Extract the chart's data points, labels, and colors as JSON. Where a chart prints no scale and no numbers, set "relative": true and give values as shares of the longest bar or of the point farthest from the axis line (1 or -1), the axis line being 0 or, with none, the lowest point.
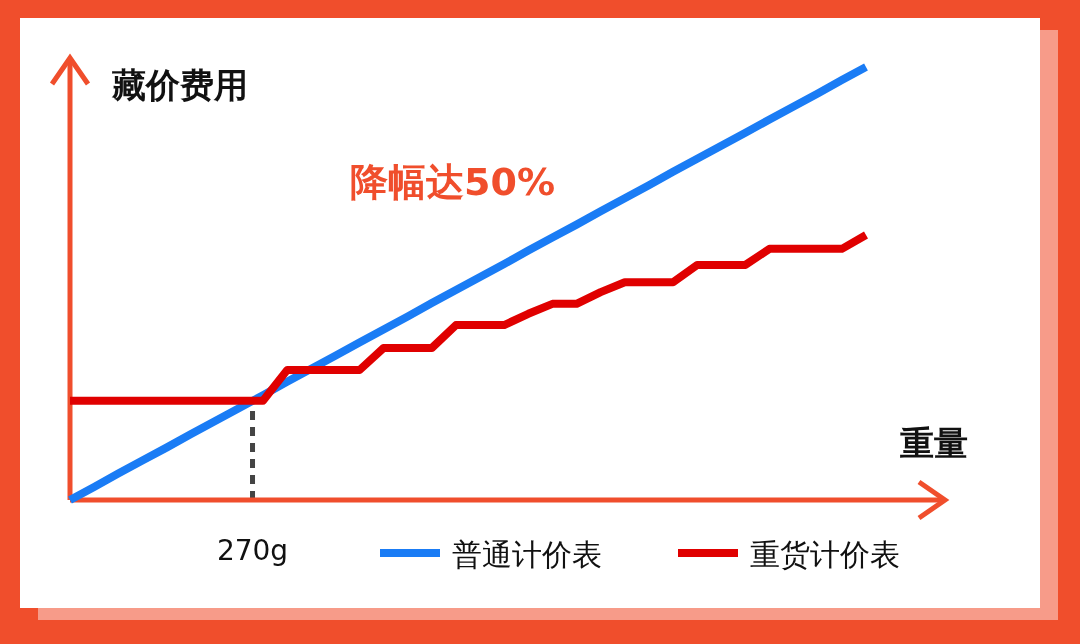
{
  "chart_data": {
    "type": "line",
    "relative": true,
    "xlabel": "重量",
    "ylabel": "藏价费用",
    "legend": "bottom",
    "annotations": [
      "降幅达50%"
    ],
    "ref_lines": [
      {
        "axis": "x",
        "label": "270g",
        "color": "#444444",
        "line_style": "dashed"
      }
    ],
    "categories": [
      null,
      null,
      null,
      null,
      null,
      null,
      null,
      null,
      null,
      null,
      null,
      null,
      null,
      null,
      null,
      null,
      null,
      null,
      null,
      null,
      null,
      null,
      null,
      null,
      null,
      null,
      null,
      null,
      null,
      null,
      null,
      null,
      null,
      null
    ],
    "series": [
      {
        "name": "普通计价表",
        "color": "#1a7cf5",
        "values": [
          0,
          0.03,
          0.061,
          0.091,
          0.121,
          0.152,
          0.182,
          0.212,
          0.242,
          0.273,
          0.303,
          0.333,
          0.364,
          0.394,
          0.424,
          0.455,
          0.485,
          0.515,
          0.545,
          0.576,
          0.606,
          0.636,
          0.667,
          0.697,
          0.727,
          0.758,
          0.788,
          0.818,
          0.848,
          0.879,
          0.909,
          0.939,
          0.97,
          1
        ]
      },
      {
        "name": "重货计价表",
        "color": "#e00000",
        "values": [
          0.229,
          0.229,
          0.229,
          0.229,
          0.229,
          0.229,
          0.229,
          0.229,
          0.229,
          0.3,
          0.3,
          0.3,
          0.3,
          0.351,
          0.351,
          0.351,
          0.404,
          0.404,
          0.404,
          0.43,
          0.453,
          0.453,
          0.48,
          0.503,
          0.503,
          0.503,
          0.543,
          0.543,
          0.543,
          0.58,
          0.58,
          0.58,
          0.58,
          0.612
        ]
      }
    ]
  }
}
